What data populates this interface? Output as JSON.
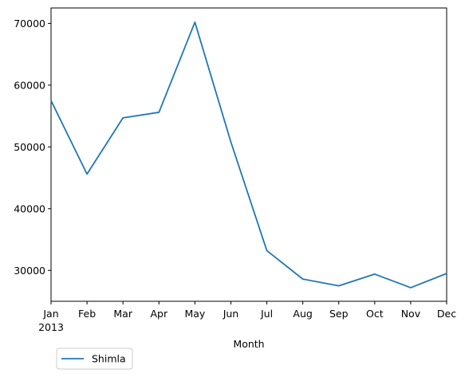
{
  "chart_data": {
    "type": "line",
    "categories": [
      "Jan",
      "Feb",
      "Mar",
      "Apr",
      "May",
      "Jun",
      "Jul",
      "Aug",
      "Sep",
      "Oct",
      "Nov",
      "Dec"
    ],
    "year_label": "2013",
    "series": [
      {
        "name": "Shimla",
        "color": "#1f77b4",
        "values": [
          57500,
          45600,
          54700,
          55600,
          70200,
          50800,
          33200,
          28600,
          27500,
          29400,
          27200,
          29500
        ]
      }
    ],
    "xlabel": "Month",
    "ylabel": "",
    "ylim": [
      25000,
      72500
    ],
    "yticks": [
      30000,
      40000,
      50000,
      60000,
      70000
    ],
    "grid": false,
    "legend": "below-left"
  }
}
